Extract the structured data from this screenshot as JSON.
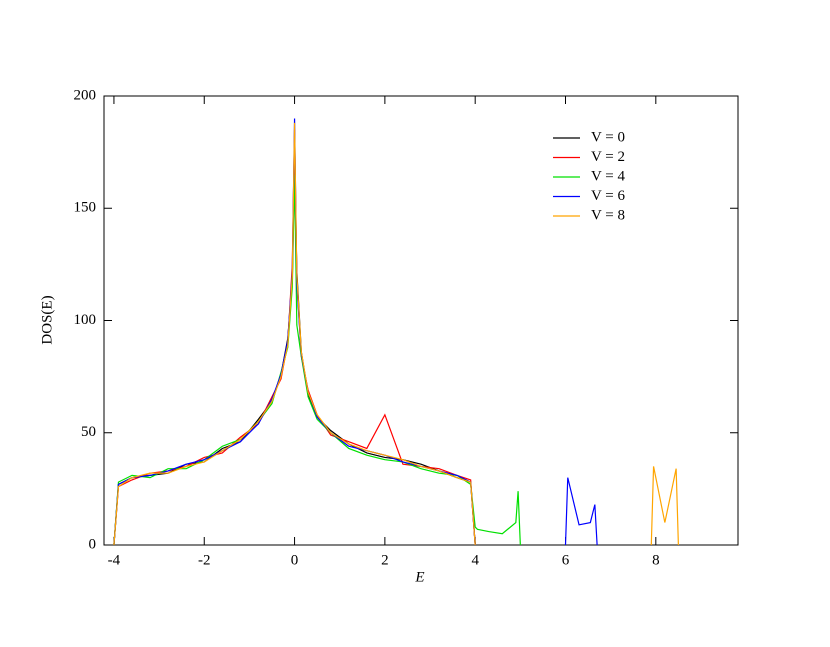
{
  "chart_data": {
    "type": "line",
    "x_label": "E",
    "y_label": "DOS(E)",
    "xlim": [
      -4.22,
      9.82
    ],
    "ylim": [
      0,
      200
    ],
    "xticks": [
      -4,
      -2,
      0,
      2,
      4,
      6,
      8
    ],
    "yticks": [
      0,
      50,
      100,
      150,
      200
    ],
    "x": [
      -4.0,
      -3.9,
      -3.6,
      -3.2,
      -2.8,
      -2.4,
      -2.0,
      -1.6,
      -1.2,
      -0.8,
      -0.5,
      -0.3,
      -0.15,
      -0.05,
      0,
      0.05,
      0.15,
      0.3,
      0.5,
      0.8,
      1.2,
      1.6,
      2.0,
      2.4,
      2.8,
      3.2,
      3.6,
      3.9,
      4.0,
      4.05,
      4.3,
      4.6,
      4.9,
      4.95,
      5.0,
      6.0,
      6.05,
      6.3,
      6.55,
      6.65,
      6.7,
      7.9,
      7.95,
      8.2,
      8.45,
      8.5
    ],
    "legend": "upper right",
    "series": [
      {
        "name": "V = 0",
        "color": "#000000",
        "values": [
          0,
          27,
          30,
          31,
          32,
          36,
          37,
          43,
          46,
          56,
          64,
          76,
          92,
          118,
          172,
          122,
          86,
          67,
          57,
          51,
          45,
          41,
          39,
          38,
          36,
          33,
          30,
          28,
          0,
          null,
          null,
          null,
          null,
          null,
          null,
          null,
          null,
          null,
          null,
          null,
          null,
          null,
          null,
          null,
          null,
          null
        ]
      },
      {
        "name": "V = 2",
        "color": "#ff0000",
        "values": [
          0,
          26,
          29,
          32,
          33,
          35,
          39,
          41,
          48,
          54,
          66,
          74,
          90,
          125,
          185,
          118,
          84,
          69,
          58,
          49,
          46,
          43,
          58,
          36,
          35,
          34,
          31,
          29,
          0,
          null,
          null,
          null,
          null,
          null,
          null,
          null,
          null,
          null,
          null,
          null,
          null,
          null,
          null,
          null,
          null,
          null
        ]
      },
      {
        "name": "V = 4",
        "color": "#00e000",
        "values": [
          0,
          28,
          31,
          30,
          34,
          34,
          38,
          44,
          47,
          55,
          63,
          77,
          88,
          115,
          165,
          98,
          84,
          66,
          56,
          50,
          43,
          40,
          38,
          37,
          34,
          32,
          31,
          27,
          8,
          7,
          6,
          5,
          10,
          24,
          0,
          null,
          null,
          null,
          null,
          null,
          null,
          null,
          null,
          null,
          null,
          null
        ]
      },
      {
        "name": "V = 6",
        "color": "#0000ff",
        "values": [
          0,
          27,
          30,
          31,
          33,
          36,
          38,
          42,
          46,
          54,
          65,
          76,
          91,
          122,
          190,
          116,
          85,
          68,
          57,
          50,
          44,
          42,
          40,
          37,
          35,
          33,
          31,
          28,
          0,
          null,
          null,
          null,
          null,
          null,
          null,
          0,
          30,
          9,
          10,
          18,
          0,
          null,
          null,
          null,
          null,
          null
        ]
      },
      {
        "name": "V = 8",
        "color": "#ffa500",
        "values": [
          0,
          26,
          30,
          32,
          32,
          35,
          37,
          42,
          47,
          55,
          64,
          75,
          89,
          120,
          188,
          120,
          86,
          68,
          58,
          50,
          45,
          42,
          40,
          38,
          35,
          33,
          30,
          28,
          0,
          null,
          null,
          null,
          null,
          null,
          null,
          null,
          null,
          null,
          null,
          null,
          null,
          0,
          35,
          10,
          34,
          0
        ]
      }
    ]
  }
}
